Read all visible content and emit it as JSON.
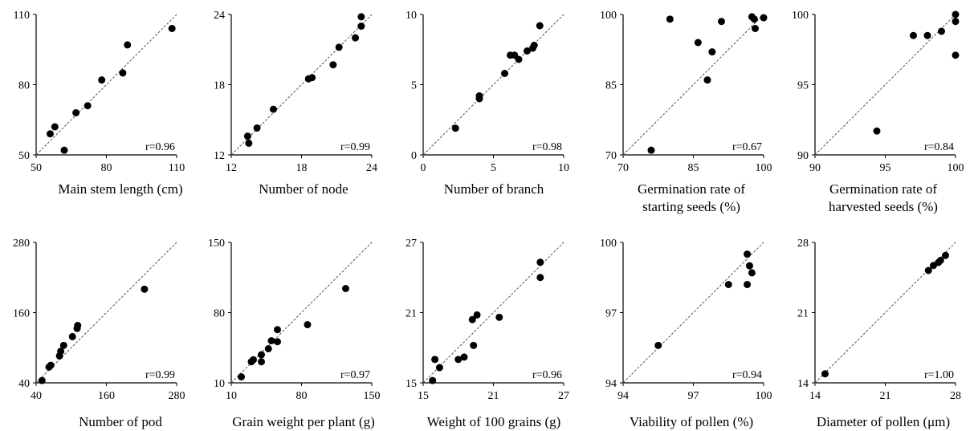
{
  "chart_data": [
    {
      "type": "scatter",
      "xlabel": [
        "Main stem length (cm)"
      ],
      "ylabel": "",
      "xlim": [
        50,
        110
      ],
      "ylim": [
        50,
        110
      ],
      "xticks": [
        "50",
        "80",
        "110"
      ],
      "yticks": [
        "50",
        "80",
        "110"
      ],
      "r_label": "r=0.96",
      "diagonal": true,
      "points": [
        [
          56,
          59
        ],
        [
          58,
          62
        ],
        [
          62,
          52
        ],
        [
          67,
          68
        ],
        [
          72,
          71
        ],
        [
          78,
          82
        ],
        [
          87,
          85
        ],
        [
          89,
          97
        ],
        [
          108,
          104
        ]
      ]
    },
    {
      "type": "scatter",
      "xlabel": [
        "Number of node"
      ],
      "ylabel": "",
      "xlim": [
        12,
        24
      ],
      "ylim": [
        12,
        24
      ],
      "xticks": [
        "12",
        "18",
        "24"
      ],
      "yticks": [
        "12",
        "18",
        "24"
      ],
      "r_label": "r=0.99",
      "diagonal": true,
      "points": [
        [
          13.5,
          13
        ],
        [
          13.4,
          13.6
        ],
        [
          14.2,
          14.3
        ],
        [
          15.6,
          15.9
        ],
        [
          18.6,
          18.5
        ],
        [
          18.9,
          18.6
        ],
        [
          20.7,
          19.7
        ],
        [
          21.2,
          21.2
        ],
        [
          22.6,
          22
        ],
        [
          23.1,
          23
        ],
        [
          23.1,
          23.8
        ]
      ]
    },
    {
      "type": "scatter",
      "xlabel": [
        "Number of branch"
      ],
      "ylabel": "",
      "xlim": [
        0,
        10
      ],
      "ylim": [
        0,
        10
      ],
      "xticks": [
        "0",
        "5",
        "10"
      ],
      "yticks": [
        "0",
        "5",
        "10"
      ],
      "r_label": "r=0.98",
      "diagonal": true,
      "points": [
        [
          2.3,
          1.9
        ],
        [
          4,
          4
        ],
        [
          4,
          4.2
        ],
        [
          5.8,
          5.8
        ],
        [
          6.2,
          7.1
        ],
        [
          6.5,
          7.1
        ],
        [
          6.8,
          6.8
        ],
        [
          7.4,
          7.4
        ],
        [
          7.8,
          7.6
        ],
        [
          7.9,
          7.8
        ],
        [
          8.3,
          9.2
        ]
      ]
    },
    {
      "type": "scatter",
      "xlabel": [
        "Germination rate of",
        "starting seeds (%)"
      ],
      "ylabel": "",
      "xlim": [
        70,
        100
      ],
      "ylim": [
        70,
        100
      ],
      "xticks": [
        "70",
        "85",
        "100"
      ],
      "yticks": [
        "70",
        "85",
        "100"
      ],
      "r_label": "r=0.67",
      "diagonal": true,
      "points": [
        [
          76,
          71
        ],
        [
          80,
          99
        ],
        [
          86,
          94
        ],
        [
          88,
          86
        ],
        [
          89,
          92
        ],
        [
          91,
          98.5
        ],
        [
          97.5,
          99.5
        ],
        [
          98,
          99
        ],
        [
          98.2,
          97
        ],
        [
          100,
          99.3
        ]
      ]
    },
    {
      "type": "scatter",
      "xlabel": [
        "Germination rate of",
        "harvested seeds (%)"
      ],
      "ylabel": "",
      "xlim": [
        90,
        100
      ],
      "ylim": [
        90,
        100
      ],
      "xticks": [
        "90",
        "95",
        "100"
      ],
      "yticks": [
        "90",
        "95",
        "100"
      ],
      "r_label": "r=0.84",
      "diagonal": true,
      "points": [
        [
          94.4,
          91.7
        ],
        [
          97,
          98.5
        ],
        [
          98,
          98.5
        ],
        [
          99,
          98.8
        ],
        [
          100,
          97.1
        ],
        [
          100,
          99.5
        ],
        [
          100,
          100
        ]
      ]
    },
    {
      "type": "scatter",
      "xlabel": [
        "Number of pod"
      ],
      "ylabel": "",
      "xlim": [
        40,
        280
      ],
      "ylim": [
        40,
        280
      ],
      "xticks": [
        "40",
        "160",
        "280"
      ],
      "yticks": [
        "40",
        "160",
        "280"
      ],
      "r_label": "r=0.99",
      "diagonal": true,
      "points": [
        [
          50,
          44
        ],
        [
          62,
          67
        ],
        [
          65,
          70
        ],
        [
          80,
          86
        ],
        [
          82,
          94
        ],
        [
          87,
          104
        ],
        [
          102,
          119
        ],
        [
          110,
          133
        ],
        [
          111,
          138
        ],
        [
          225,
          200
        ]
      ]
    },
    {
      "type": "scatter",
      "xlabel": [
        "Grain weight per plant (g)"
      ],
      "ylabel": "",
      "xlim": [
        10,
        150
      ],
      "ylim": [
        10,
        150
      ],
      "xticks": [
        "10",
        "80",
        "150"
      ],
      "yticks": [
        "10",
        "80",
        "150"
      ],
      "r_label": "r=0.97",
      "diagonal": true,
      "points": [
        [
          20,
          16
        ],
        [
          30,
          31
        ],
        [
          32,
          33
        ],
        [
          40,
          31
        ],
        [
          40,
          38
        ],
        [
          47,
          44
        ],
        [
          50,
          52
        ],
        [
          56,
          51
        ],
        [
          56,
          63
        ],
        [
          86,
          68
        ],
        [
          124,
          104
        ]
      ]
    },
    {
      "type": "scatter",
      "xlabel": [
        "Weight of 100 grains (g)"
      ],
      "ylabel": "",
      "xlim": [
        15,
        27
      ],
      "ylim": [
        15,
        27
      ],
      "xticks": [
        "15",
        "21",
        "27"
      ],
      "yticks": [
        "15",
        "21",
        "27"
      ],
      "r_label": "r=0.96",
      "diagonal": true,
      "points": [
        [
          15.8,
          15.2
        ],
        [
          16,
          17
        ],
        [
          16.4,
          16.3
        ],
        [
          18,
          17
        ],
        [
          18.5,
          17.2
        ],
        [
          19.3,
          18.2
        ],
        [
          19.2,
          20.4
        ],
        [
          19.6,
          20.8
        ],
        [
          21.5,
          20.6
        ],
        [
          25,
          24
        ],
        [
          25,
          25.3
        ]
      ]
    },
    {
      "type": "scatter",
      "xlabel": [
        "Viability of pollen (%)"
      ],
      "ylabel": "",
      "xlim": [
        94,
        100
      ],
      "ylim": [
        94,
        100
      ],
      "xticks": [
        "94",
        "97",
        "100"
      ],
      "yticks": [
        "94",
        "97",
        "100"
      ],
      "r_label": "r=0.94",
      "diagonal": true,
      "points": [
        [
          95.5,
          95.6
        ],
        [
          98.5,
          98.2
        ],
        [
          99.3,
          98.2
        ],
        [
          99.3,
          99.5
        ],
        [
          99.4,
          99
        ],
        [
          99.5,
          98.7
        ]
      ]
    },
    {
      "type": "scatter",
      "xlabel": [
        "Diameter of pollen (μm)"
      ],
      "ylabel": "",
      "xlim": [
        14,
        28
      ],
      "ylim": [
        14,
        28
      ],
      "xticks": [
        "14",
        "21",
        "28"
      ],
      "yticks": [
        "14",
        "21",
        "28"
      ],
      "r_label": "r=1.00",
      "diagonal": true,
      "points": [
        [
          15,
          14.9
        ],
        [
          25.3,
          25.2
        ],
        [
          25.8,
          25.7
        ],
        [
          26.3,
          26
        ],
        [
          26.5,
          26.2
        ],
        [
          27,
          26.7
        ]
      ]
    }
  ]
}
